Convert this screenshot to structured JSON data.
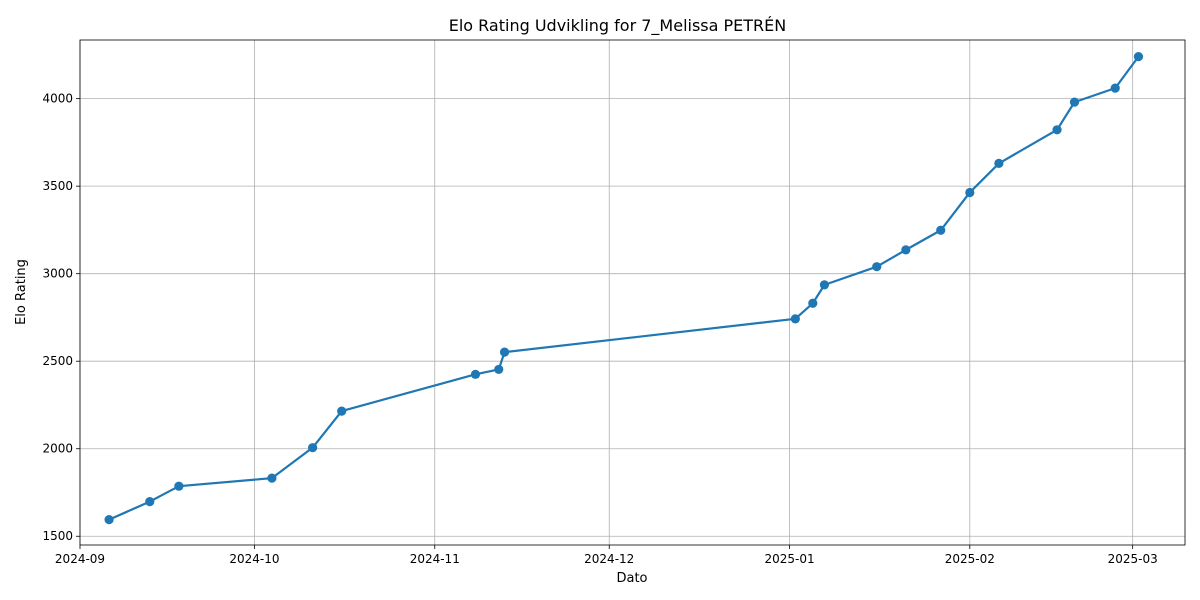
{
  "chart_data": {
    "type": "line",
    "title": "Elo Rating Udvikling for 7_Melissa PETRÉN",
    "xlabel": "Dato",
    "ylabel": "Elo Rating",
    "grid": true,
    "color": "#1f77b4",
    "marker": "circle",
    "xlim": [
      "2024-09-01",
      "2025-03-10"
    ],
    "ylim": [
      1450,
      4335
    ],
    "x_ticks": [
      {
        "date": "2024-09-01",
        "label": "2024-09"
      },
      {
        "date": "2024-10-01",
        "label": "2024-10"
      },
      {
        "date": "2024-11-01",
        "label": "2024-11"
      },
      {
        "date": "2024-12-01",
        "label": "2024-12"
      },
      {
        "date": "2025-01-01",
        "label": "2025-01"
      },
      {
        "date": "2025-02-01",
        "label": "2025-02"
      },
      {
        "date": "2025-03-01",
        "label": "2025-03"
      }
    ],
    "y_ticks": [
      {
        "value": 1500,
        "label": "1500"
      },
      {
        "value": 2000,
        "label": "2000"
      },
      {
        "value": 2500,
        "label": "2500"
      },
      {
        "value": 3000,
        "label": "3000"
      },
      {
        "value": 3500,
        "label": "3500"
      },
      {
        "value": 4000,
        "label": "4000"
      }
    ],
    "series": [
      {
        "points": [
          {
            "x": "2024-09-06",
            "y": 1595
          },
          {
            "x": "2024-09-13",
            "y": 1698
          },
          {
            "x": "2024-09-18",
            "y": 1786
          },
          {
            "x": "2024-10-04",
            "y": 1832
          },
          {
            "x": "2024-10-11",
            "y": 2006
          },
          {
            "x": "2024-10-16",
            "y": 2215
          },
          {
            "x": "2024-11-08",
            "y": 2425
          },
          {
            "x": "2024-11-12",
            "y": 2453
          },
          {
            "x": "2024-11-13",
            "y": 2552
          },
          {
            "x": "2025-01-02",
            "y": 2742
          },
          {
            "x": "2025-01-05",
            "y": 2831
          },
          {
            "x": "2025-01-07",
            "y": 2936
          },
          {
            "x": "2025-01-16",
            "y": 3040
          },
          {
            "x": "2025-01-21",
            "y": 3136
          },
          {
            "x": "2025-01-27",
            "y": 3248
          },
          {
            "x": "2025-02-01",
            "y": 3464
          },
          {
            "x": "2025-02-06",
            "y": 3630
          },
          {
            "x": "2025-02-16",
            "y": 3822
          },
          {
            "x": "2025-02-19",
            "y": 3980
          },
          {
            "x": "2025-02-26",
            "y": 4060
          },
          {
            "x": "2025-03-02",
            "y": 4240
          }
        ]
      }
    ]
  }
}
